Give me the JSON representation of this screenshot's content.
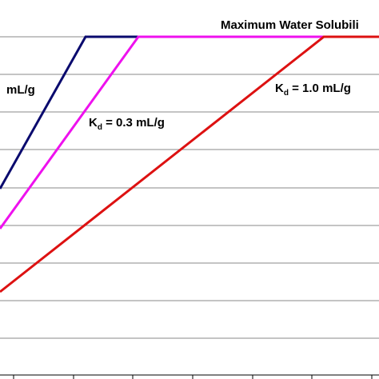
{
  "chart_data": {
    "type": "line",
    "grid": true,
    "legend": "none",
    "annotations": {
      "max_solubility": "Maximum Water Solubili",
      "kd_partial": "mL/g",
      "kd_mid_prefix": "K",
      "kd_mid_sub": "d",
      "kd_mid_rest": " = 0.3 mL/g",
      "kd_high_prefix": "K",
      "kd_high_sub": "d",
      "kd_high_rest": " = 1.0 mL/g"
    },
    "series": [
      {
        "color": "#0a0a6e",
        "points": [
          [
            0,
            236
          ],
          [
            107,
            46
          ],
          [
            474,
            46
          ]
        ]
      },
      {
        "color": "#ee11ee",
        "points": [
          [
            0,
            286
          ],
          [
            173,
            46
          ],
          [
            474,
            46
          ]
        ]
      },
      {
        "color": "#dd1111",
        "points": [
          [
            0,
            365
          ],
          [
            405,
            46
          ],
          [
            474,
            46
          ]
        ]
      }
    ]
  },
  "colors": {
    "grid": "#8a8a8a",
    "axis": "#000000"
  }
}
